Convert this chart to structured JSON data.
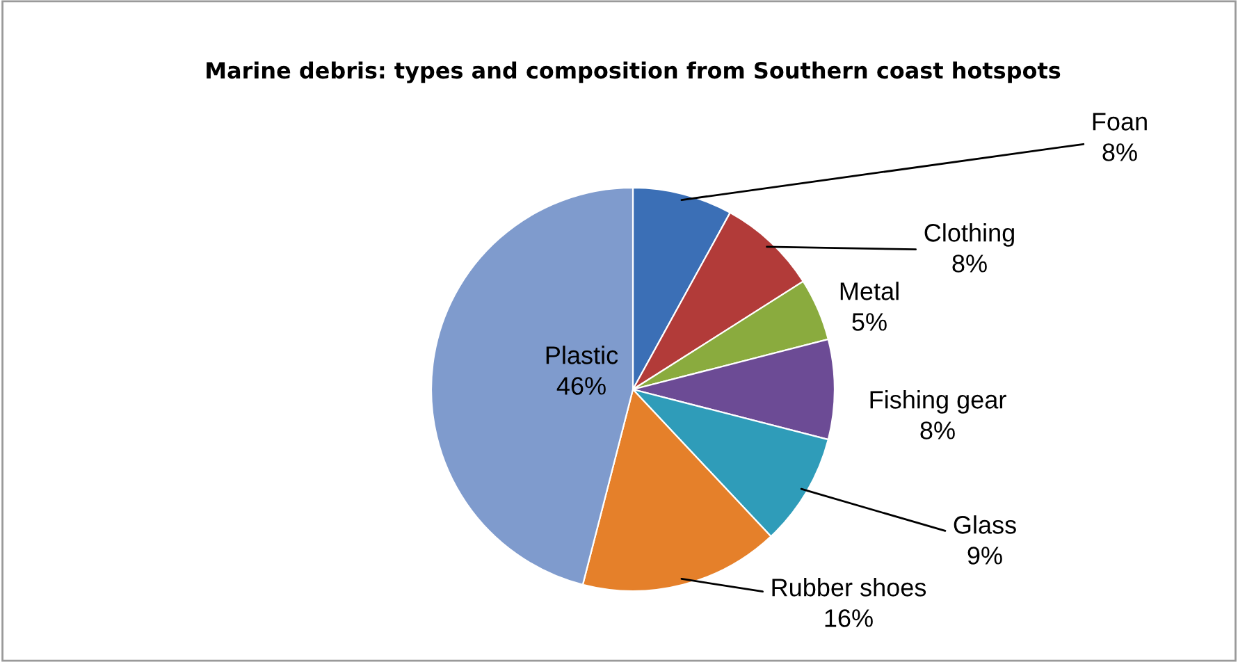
{
  "chart_data": {
    "type": "pie",
    "title": "Marine debris: types and composition from Southern coast hotspots",
    "categories": [
      "Foan",
      "Clothing",
      "Metal",
      "Fishing gear",
      "Glass",
      "Rubber shoes",
      "Plastic"
    ],
    "values": [
      8,
      8,
      5,
      8,
      9,
      16,
      46
    ],
    "value_labels": [
      "8%",
      "8%",
      "5%",
      "8%",
      "9%",
      "16%",
      "46%"
    ],
    "colors": [
      "#3b6fb6",
      "#b23b39",
      "#8aab3e",
      "#6c4b95",
      "#2f9cb9",
      "#e5802a",
      "#7f9bcd"
    ]
  }
}
